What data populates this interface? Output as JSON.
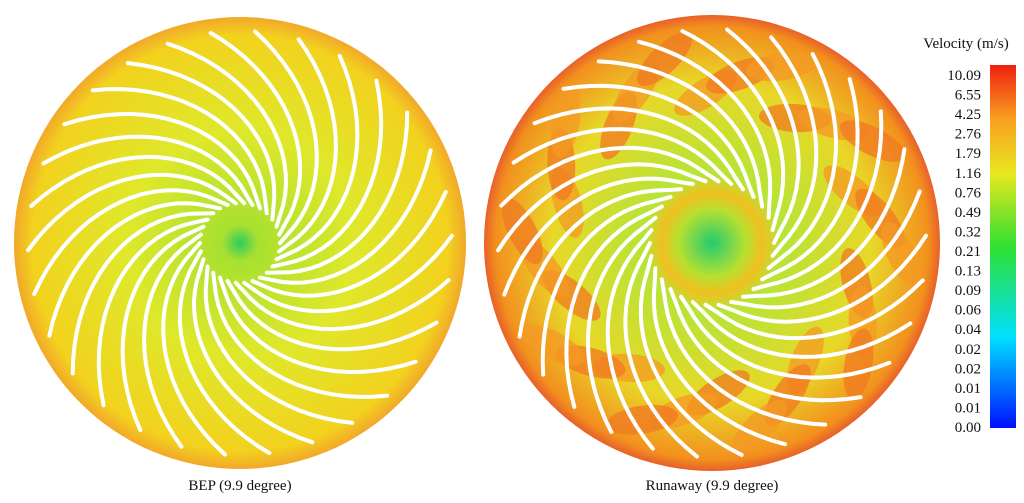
{
  "panels": [
    {
      "caption": "BEP (9.9 degree)"
    },
    {
      "caption": "Runaway (9.9 degree)"
    }
  ],
  "colorbar": {
    "title": "Velocity (m/s)",
    "labels": [
      "10.09",
      "6.55",
      "4.25",
      "2.76",
      "1.79",
      "1.16",
      "0.76",
      "0.49",
      "0.32",
      "0.21",
      "0.13",
      "0.09",
      "0.06",
      "0.04",
      "0.02",
      "0.02",
      "0.01",
      "0.01",
      "0.00"
    ]
  }
}
